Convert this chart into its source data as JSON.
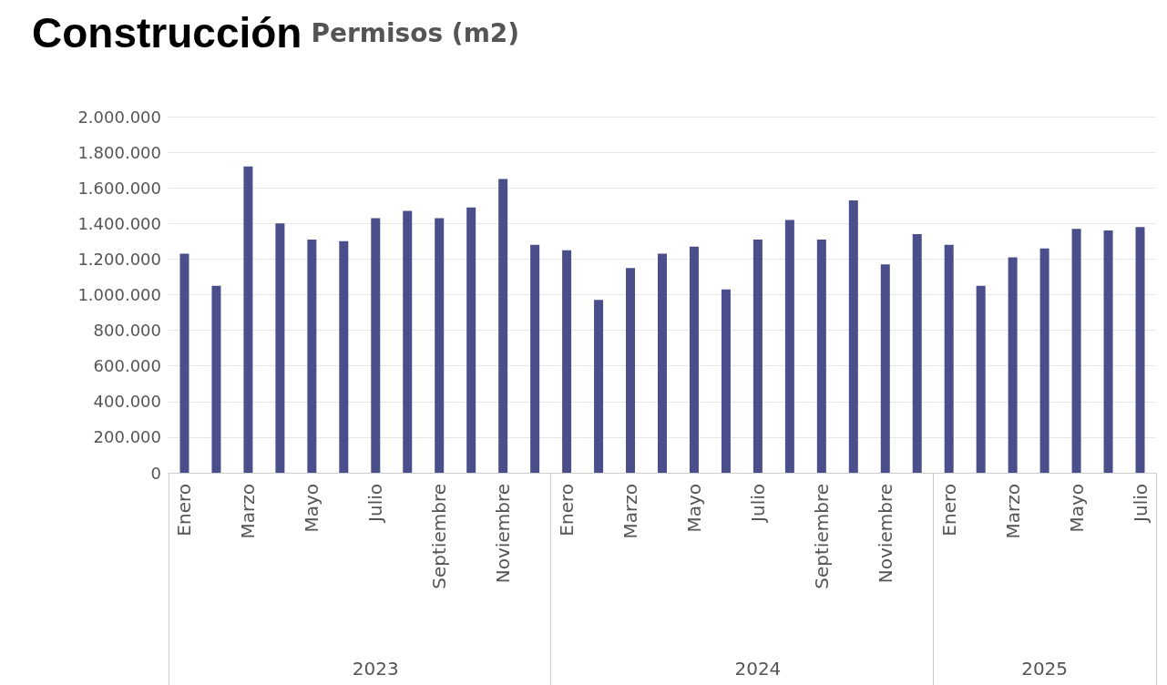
{
  "chart_data": {
    "type": "bar",
    "title": "Construcción",
    "subtitle": "Permisos (m2)",
    "categories": [
      "Enero",
      null,
      "Marzo",
      null,
      "Mayo",
      null,
      "Julio",
      null,
      "Septiembre",
      null,
      "Noviembre",
      null,
      "Enero",
      null,
      "Marzo",
      null,
      "Mayo",
      null,
      "Julio",
      null,
      "Septiembre",
      null,
      "Noviembre",
      null,
      "Enero",
      null,
      "Marzo",
      null,
      "Mayo",
      null,
      "Julio"
    ],
    "values": [
      1230000,
      1050000,
      1720000,
      1400000,
      1310000,
      1300000,
      1430000,
      1470000,
      1430000,
      1490000,
      1650000,
      1280000,
      1250000,
      970000,
      1150000,
      1230000,
      1270000,
      1030000,
      1310000,
      1420000,
      1310000,
      1530000,
      1170000,
      1340000,
      1280000,
      1050000,
      1210000,
      1260000,
      1370000,
      1360000,
      1380000
    ],
    "color": "#4a4e8a",
    "annotations": [
      "2023",
      "2024",
      "2025"
    ],
    "ylim": [
      0,
      2000000
    ],
    "yticks": [
      0,
      {
        "value": 200000,
        "label": "200.000"
      },
      {
        "value": 400000,
        "label": "400.000"
      },
      {
        "value": 600000,
        "label": "600.000"
      },
      {
        "value": 800000,
        "label": "800.000"
      },
      {
        "value": 1000000,
        "label": "1.000.000"
      },
      {
        "value": 1200000,
        "label": "1.200.000"
      },
      {
        "value": 1400000,
        "label": "1.400.000"
      },
      {
        "value": 1600000,
        "label": "1.600.000"
      },
      {
        "value": 1800000,
        "label": "1.800.000"
      },
      {
        "value": 2000000,
        "label": "2.000.000"
      }
    ],
    "grid": "y"
  }
}
